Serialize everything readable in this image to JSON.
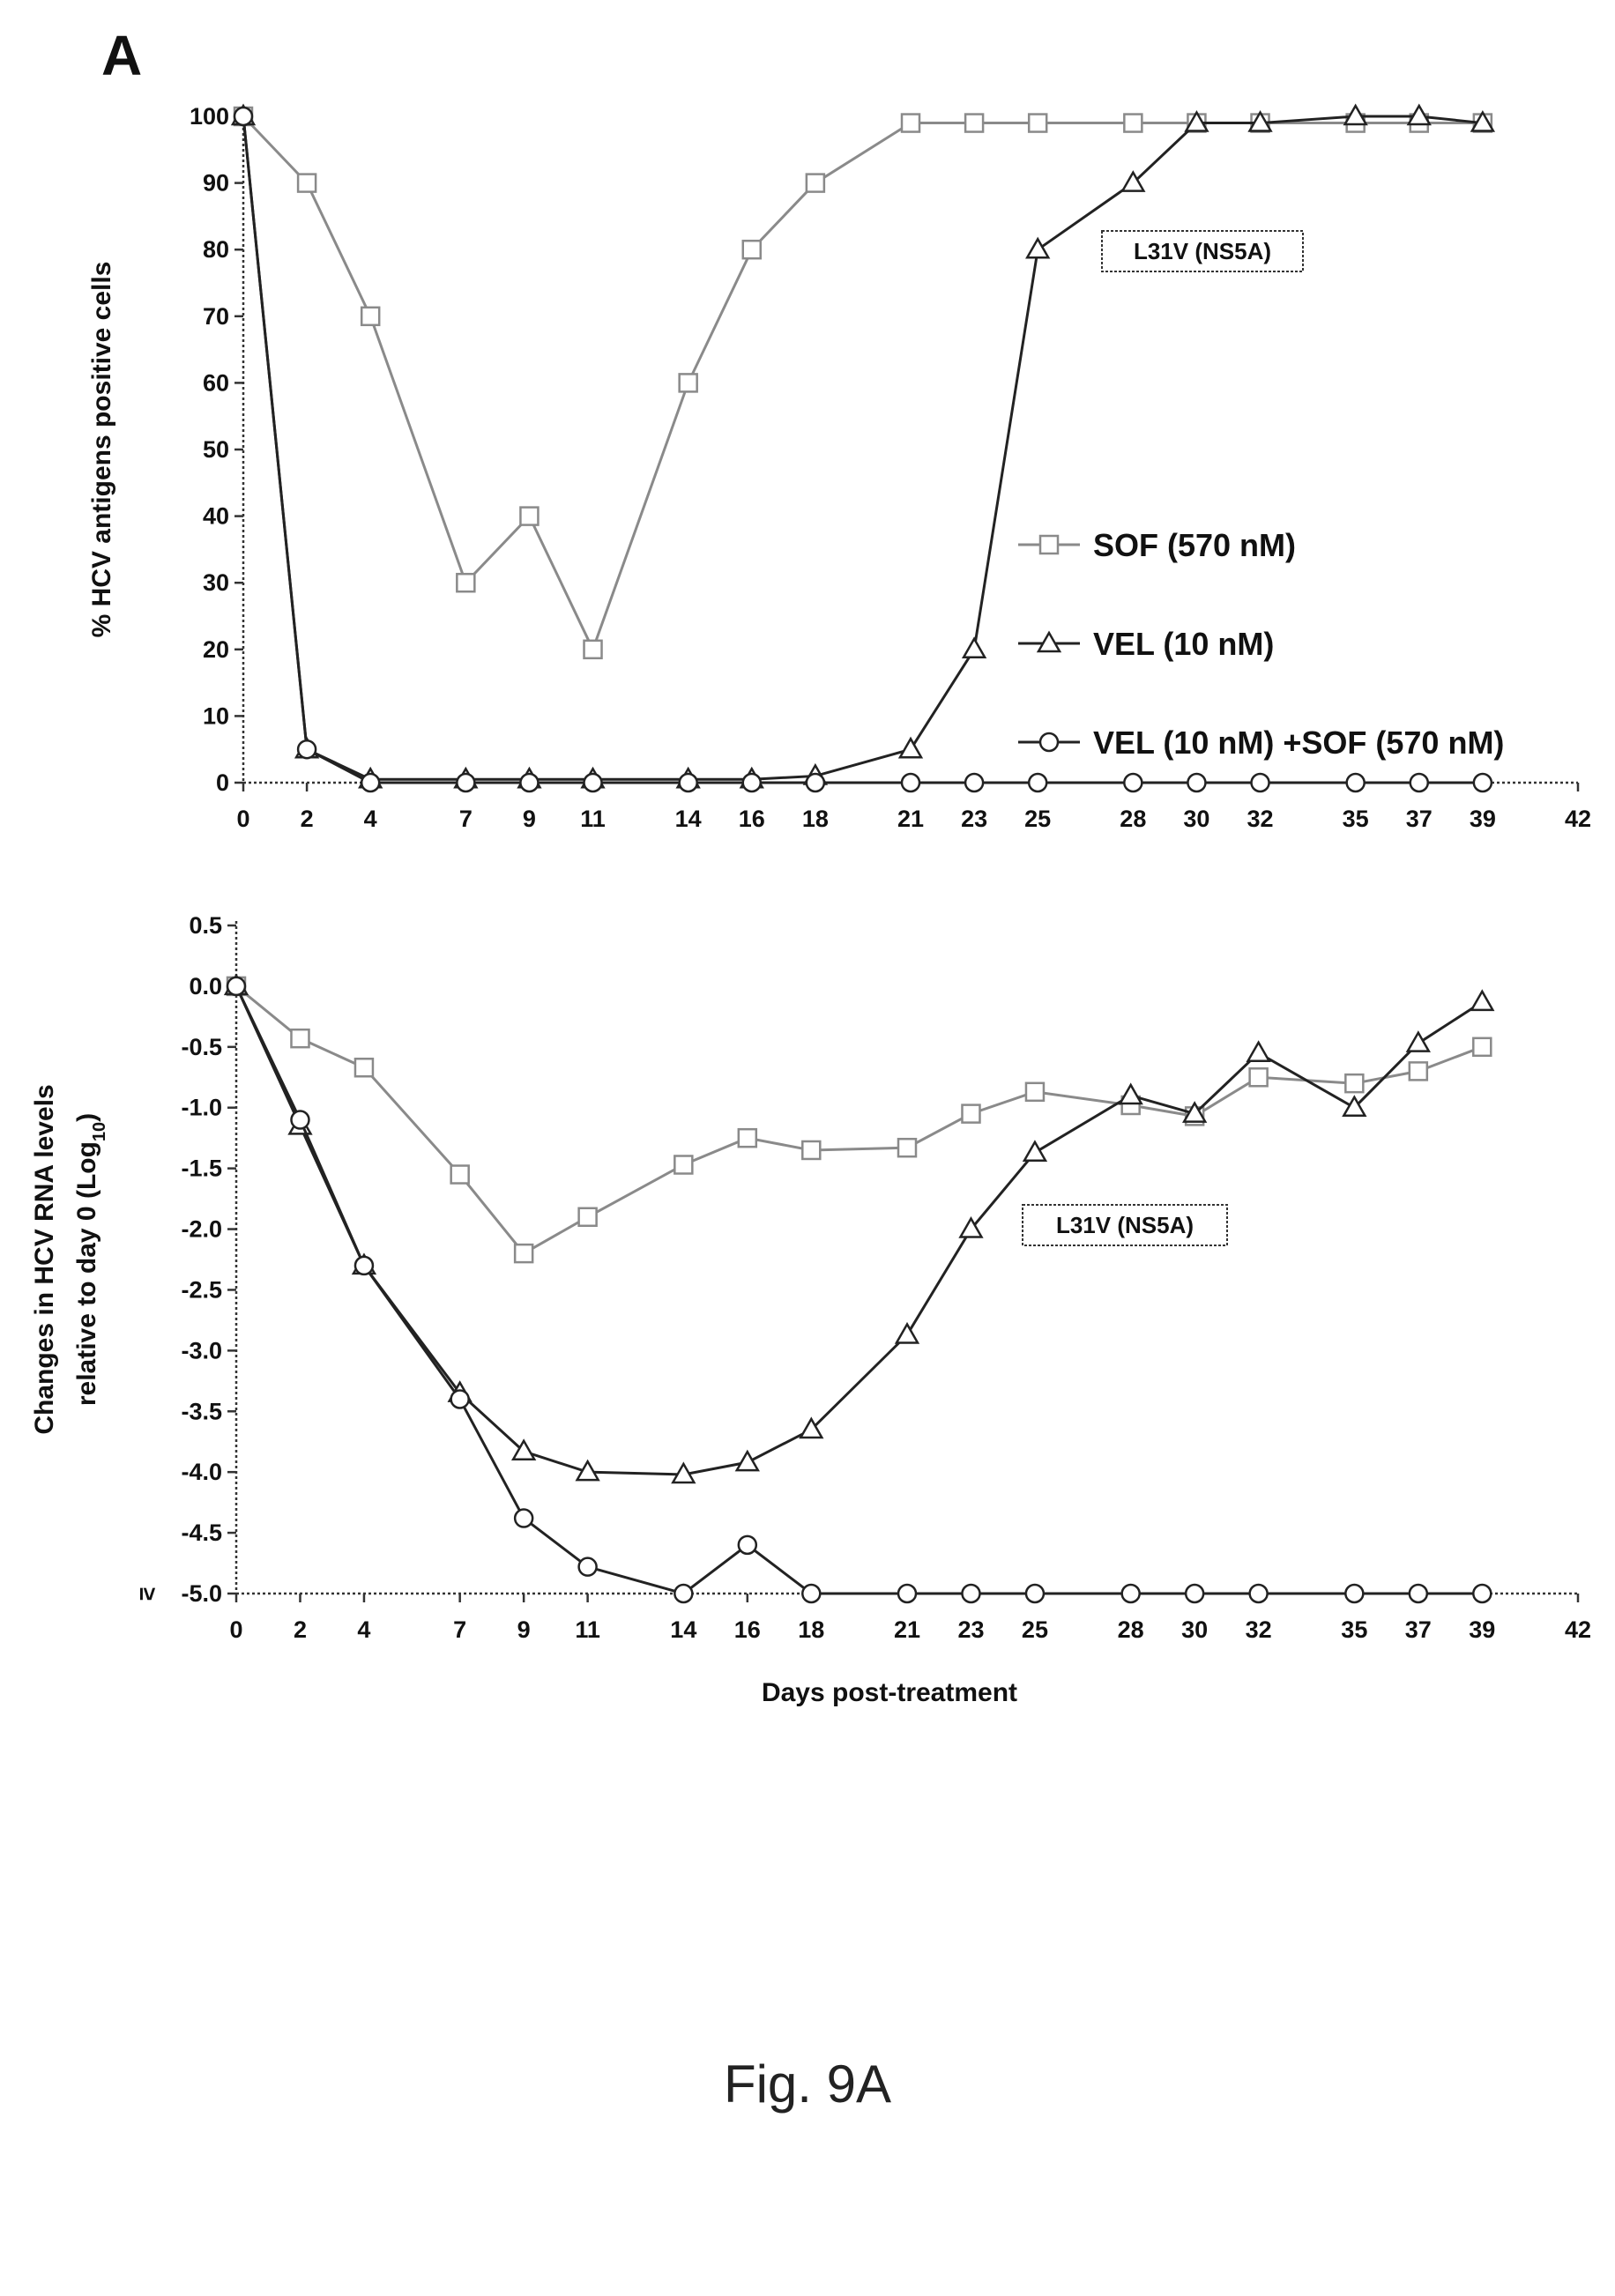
{
  "panel_label": "A",
  "figure_caption": "Fig. 9A",
  "legend": [
    {
      "label": "SOF (570 nM)",
      "marker": "square",
      "color": "#8a8a8a"
    },
    {
      "label": "VEL (10 nM)",
      "marker": "triangle",
      "color": "#222222"
    },
    {
      "label": "VEL (10 nM) +SOF (570 nM)",
      "marker": "circle",
      "color": "#222222"
    }
  ],
  "chart_data": [
    {
      "type": "line",
      "ylabel": "% HCV antigens positive cells",
      "xlabel": "",
      "annotation": "L31V (NS5A)",
      "xlim": [
        0,
        42
      ],
      "ylim": [
        0,
        100
      ],
      "xticks": [
        0,
        2,
        4,
        7,
        9,
        11,
        14,
        16,
        18,
        21,
        23,
        25,
        28,
        30,
        32,
        35,
        37,
        39,
        42
      ],
      "yticks": [
        0,
        10,
        20,
        30,
        40,
        50,
        60,
        70,
        80,
        90,
        100
      ],
      "series": [
        {
          "name": "SOF (570 nM)",
          "marker": "square",
          "x": [
            0,
            2,
            4,
            7,
            9,
            11,
            14,
            16,
            18,
            21,
            23,
            25,
            28,
            30,
            32,
            35,
            37,
            39
          ],
          "y": [
            100,
            90,
            70,
            30,
            40,
            20,
            60,
            80,
            90,
            99,
            99,
            99,
            99,
            99,
            99,
            99,
            99,
            99
          ]
        },
        {
          "name": "VEL (10 nM)",
          "marker": "triangle",
          "x": [
            0,
            2,
            4,
            7,
            9,
            11,
            14,
            16,
            18,
            21,
            23,
            25,
            28,
            30,
            32,
            35,
            37,
            39
          ],
          "y": [
            100,
            5,
            0.5,
            0.5,
            0.5,
            0.5,
            0.5,
            0.5,
            1,
            5,
            20,
            80,
            90,
            99,
            99,
            100,
            100,
            99
          ]
        },
        {
          "name": "VEL (10 nM) +SOF (570 nM)",
          "marker": "circle",
          "x": [
            0,
            2,
            4,
            7,
            9,
            11,
            14,
            16,
            18,
            21,
            23,
            25,
            28,
            30,
            32,
            35,
            37,
            39
          ],
          "y": [
            100,
            5,
            0,
            0,
            0,
            0,
            0,
            0,
            0,
            0,
            0,
            0,
            0,
            0,
            0,
            0,
            0,
            0
          ]
        }
      ]
    },
    {
      "type": "line",
      "ylabel": "Changes in HCV RNA levels relative to day 0 (Log10)",
      "ylabel_lines": [
        "Changes in HCV RNA levels",
        "relative to day 0 (Log",
        "10",
        ")"
      ],
      "xlabel": "Days post-treatment",
      "annotation": "L31V (NS5A)",
      "xlim": [
        0,
        42
      ],
      "ylim": [
        -5.0,
        0.5
      ],
      "xticks": [
        0,
        2,
        4,
        7,
        9,
        11,
        14,
        16,
        18,
        21,
        23,
        25,
        28,
        30,
        32,
        35,
        37,
        39,
        42
      ],
      "yticks": [
        0.5,
        0.0,
        -0.5,
        -1.0,
        -1.5,
        -2.0,
        -2.5,
        -3.0,
        -3.5,
        -4.0,
        -4.5,
        -5.0
      ],
      "ytick_labels": [
        "0.5",
        "0.0",
        "-0.5",
        "-1.0",
        "-1.5",
        "-2.0",
        "-2.5",
        "-3.0",
        "-3.5",
        "-4.0",
        "-4.5",
        "-5.0"
      ],
      "ybottom_prefix": "≥",
      "series": [
        {
          "name": "SOF (570 nM)",
          "marker": "square",
          "x": [
            0,
            2,
            4,
            7,
            9,
            11,
            14,
            16,
            18,
            21,
            23,
            25,
            28,
            30,
            32,
            35,
            37,
            39
          ],
          "y": [
            0,
            -0.43,
            -0.67,
            -1.55,
            -2.2,
            -1.9,
            -1.47,
            -1.25,
            -1.35,
            -1.33,
            -1.05,
            -0.87,
            -0.98,
            -1.07,
            -0.75,
            -0.8,
            -0.7,
            -0.5
          ]
        },
        {
          "name": "VEL (10 nM)",
          "marker": "triangle",
          "x": [
            0,
            2,
            4,
            7,
            9,
            11,
            14,
            16,
            18,
            21,
            23,
            25,
            28,
            30,
            32,
            35,
            37,
            39
          ],
          "y": [
            0,
            -1.15,
            -2.3,
            -3.35,
            -3.83,
            -4.0,
            -4.02,
            -3.92,
            -3.65,
            -2.87,
            -2.0,
            -1.37,
            -0.9,
            -1.05,
            -0.55,
            -1.0,
            -0.47,
            -0.13
          ]
        },
        {
          "name": "VEL (10 nM) +SOF (570 nM)",
          "marker": "circle",
          "x": [
            0,
            2,
            4,
            7,
            9,
            11,
            14,
            16,
            18,
            21,
            23,
            25,
            28,
            30,
            32,
            35,
            37,
            39
          ],
          "y": [
            0,
            -1.1,
            -2.3,
            -3.4,
            -4.38,
            -4.78,
            -5.0,
            -4.6,
            -5.0,
            -5.0,
            -5.0,
            -5.0,
            -5.0,
            -5.0,
            -5.0,
            -5.0,
            -5.0,
            -5.0
          ]
        }
      ]
    }
  ]
}
